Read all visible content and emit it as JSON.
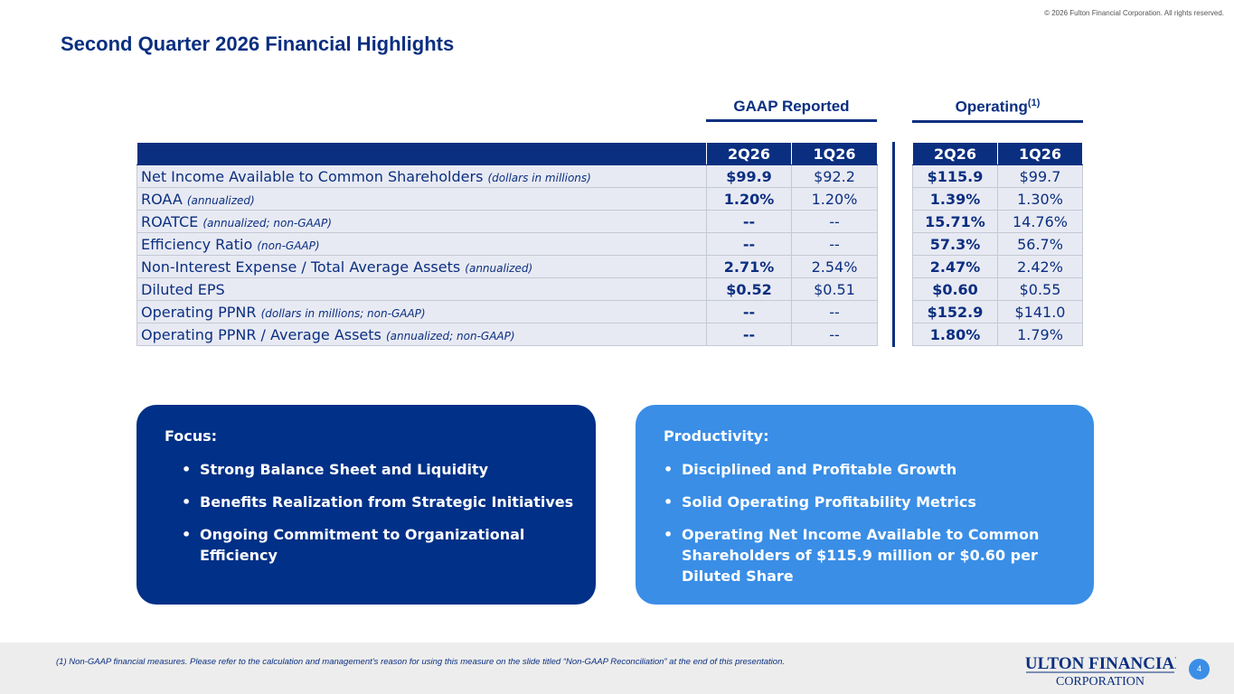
{
  "copyright": "© 2026 Fulton Financial Corporation.  All rights reserved.",
  "title": "Second Quarter 2026 Financial Highlights",
  "groups": {
    "gaap": "GAAP Reported",
    "operating": "Operating",
    "operating_sup": "(1)"
  },
  "table": {
    "columns": [
      "2Q26",
      "1Q26",
      "2Q26",
      "1Q26"
    ],
    "rows": [
      {
        "label": "Net Income Available to Common Shareholders",
        "qual": "(dollars in millions)",
        "gaap_2q": "$99.9",
        "gaap_1q": "$92.2",
        "op_2q": "$115.9",
        "op_1q": "$99.7"
      },
      {
        "label": "ROAA",
        "qual": "(annualized)",
        "gaap_2q": "1.20%",
        "gaap_1q": "1.20%",
        "op_2q": "1.39%",
        "op_1q": "1.30%"
      },
      {
        "label": "ROATCE",
        "qual": "(annualized; non-GAAP)",
        "gaap_2q": "--",
        "gaap_1q": "--",
        "op_2q": "15.71%",
        "op_1q": "14.76%"
      },
      {
        "label": "Efficiency Ratio",
        "qual": "(non-GAAP)",
        "gaap_2q": "--",
        "gaap_1q": "--",
        "op_2q": "57.3%",
        "op_1q": "56.7%"
      },
      {
        "label": "Non-Interest Expense / Total Average Assets",
        "qual": "(annualized)",
        "gaap_2q": "2.71%",
        "gaap_1q": "2.54%",
        "op_2q": "2.47%",
        "op_1q": "2.42%"
      },
      {
        "label": "Diluted EPS",
        "qual": "",
        "gaap_2q": "$0.52",
        "gaap_1q": "$0.51",
        "op_2q": "$0.60",
        "op_1q": "$0.55"
      },
      {
        "label": "Operating PPNR",
        "qual": "(dollars in millions; non-GAAP)",
        "gaap_2q": "--",
        "gaap_1q": "--",
        "op_2q": "$152.9",
        "op_1q": "$141.0"
      },
      {
        "label": "Operating PPNR / Average Assets",
        "qual": "(annualized; non-GAAP)",
        "gaap_2q": "--",
        "gaap_1q": "--",
        "op_2q": "1.80%",
        "op_1q": "1.79%"
      }
    ]
  },
  "focus": {
    "heading": "Focus:",
    "bullets": [
      "Strong Balance Sheet and Liquidity",
      "Benefits Realization from Strategic Initiatives",
      "Ongoing Commitment to Organizational Efficiency"
    ]
  },
  "productivity": {
    "heading": "Productivity:",
    "bullets": [
      "Disciplined and Profitable Growth",
      "Solid Operating Profitability Metrics",
      "Operating Net Income Available to Common Shareholders of $115.9 million or $0.60 per Diluted Share"
    ]
  },
  "footnote": "(1) Non-GAAP financial measures.  Please refer to the calculation and management’s reason for using this measure on the slide titled “Non-GAAP Reconciliation” at the end of this presentation.",
  "logo": {
    "line1": "FULTON FINANCIAL",
    "line2": "CORPORATION"
  },
  "page_number": "4",
  "colors": {
    "navy": "#0b2f80",
    "focus_bg": "#003087",
    "productivity_bg": "#3a8ee6",
    "row_bg": "#e8eaf3",
    "footer_bg": "#ededed"
  }
}
